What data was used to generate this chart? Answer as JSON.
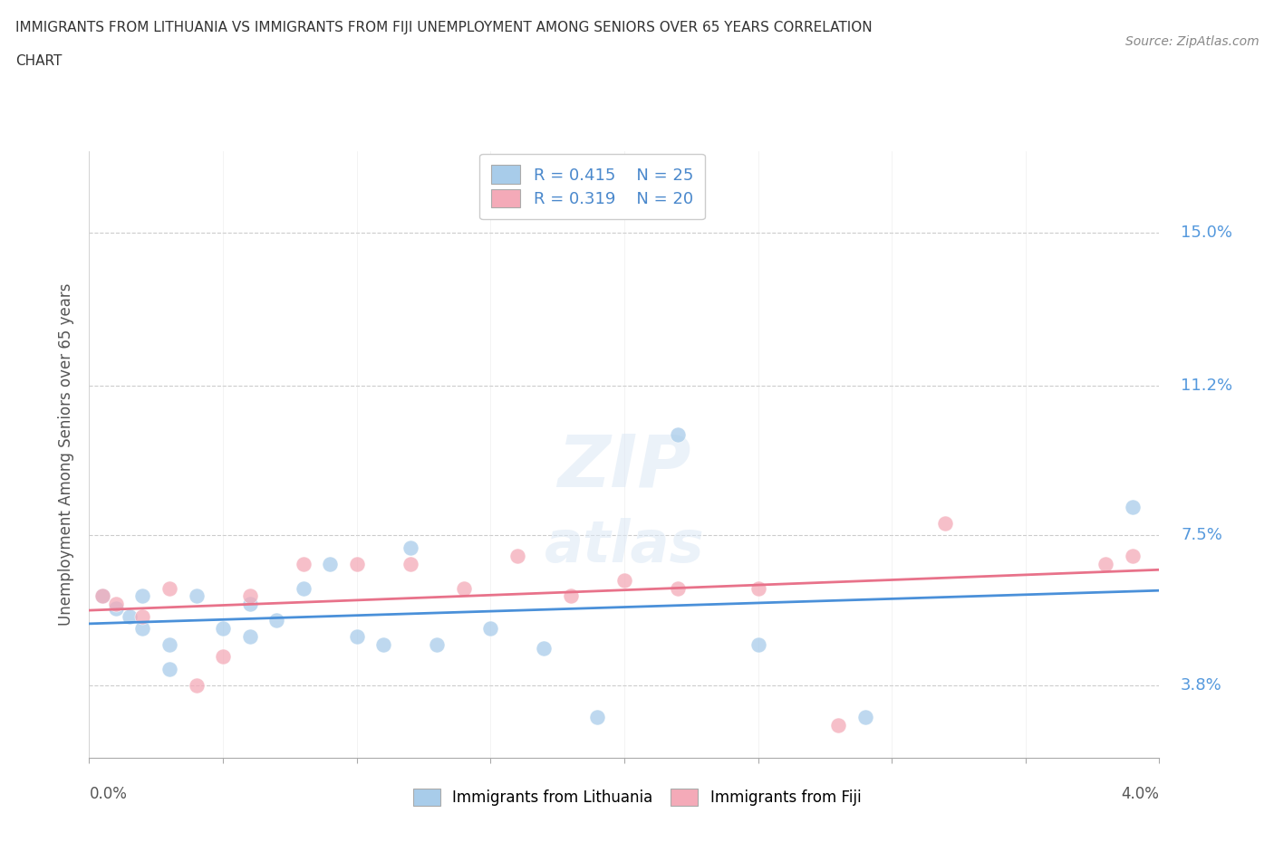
{
  "title_line1": "IMMIGRANTS FROM LITHUANIA VS IMMIGRANTS FROM FIJI UNEMPLOYMENT AMONG SENIORS OVER 65 YEARS CORRELATION",
  "title_line2": "CHART",
  "source": "Source: ZipAtlas.com",
  "ylabel_label": "Unemployment Among Seniors over 65 years",
  "legend_entry1": {
    "r": "0.415",
    "n": "25",
    "label": "Immigrants from Lithuania",
    "color": "#a8ccea"
  },
  "legend_entry2": {
    "r": "0.319",
    "n": "20",
    "label": "Immigrants from Fiji",
    "color": "#f4aab8"
  },
  "background_color": "#ffffff",
  "lithuania_color": "#a8ccea",
  "fiji_color": "#f4aab8",
  "lithuania_line_color": "#4a90d9",
  "fiji_line_color": "#e8728a",
  "xlim": [
    0.0,
    0.04
  ],
  "ylim": [
    0.02,
    0.17
  ],
  "y_tick_positions": [
    0.038,
    0.075,
    0.112,
    0.15
  ],
  "y_tick_labels": [
    "3.8%",
    "7.5%",
    "11.2%",
    "15.0%"
  ],
  "x_tick_positions": [
    0.0,
    0.005,
    0.01,
    0.015,
    0.02,
    0.025,
    0.03,
    0.035,
    0.04
  ],
  "lith_x": [
    0.0005,
    0.001,
    0.0015,
    0.002,
    0.002,
    0.003,
    0.003,
    0.004,
    0.005,
    0.006,
    0.006,
    0.007,
    0.008,
    0.009,
    0.01,
    0.011,
    0.012,
    0.013,
    0.015,
    0.017,
    0.019,
    0.022,
    0.025,
    0.029,
    0.039
  ],
  "lith_y": [
    0.06,
    0.057,
    0.055,
    0.06,
    0.052,
    0.048,
    0.042,
    0.06,
    0.052,
    0.058,
    0.05,
    0.054,
    0.062,
    0.068,
    0.05,
    0.048,
    0.072,
    0.048,
    0.052,
    0.047,
    0.03,
    0.1,
    0.048,
    0.03,
    0.082
  ],
  "fiji_x": [
    0.0005,
    0.001,
    0.002,
    0.003,
    0.004,
    0.005,
    0.006,
    0.008,
    0.01,
    0.012,
    0.014,
    0.016,
    0.018,
    0.02,
    0.022,
    0.025,
    0.028,
    0.032,
    0.038,
    0.039
  ],
  "fiji_y": [
    0.06,
    0.058,
    0.055,
    0.062,
    0.038,
    0.045,
    0.06,
    0.068,
    0.068,
    0.068,
    0.062,
    0.07,
    0.06,
    0.064,
    0.062,
    0.062,
    0.028,
    0.078,
    0.068,
    0.07
  ]
}
